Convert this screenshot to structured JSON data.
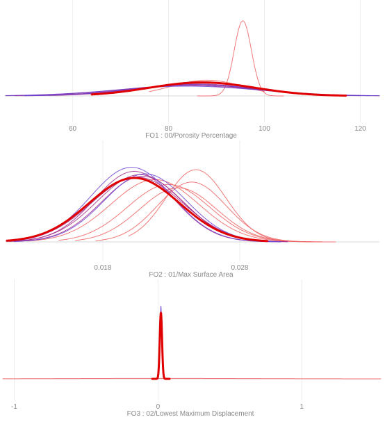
{
  "chart_data": [
    {
      "type": "line",
      "subtype": "density",
      "xlabel": "FO1 : 00/Porosity Percentage",
      "xticks": [
        60,
        80,
        100,
        120
      ],
      "xlim": [
        46,
        124
      ],
      "grid": true,
      "colors": {
        "light": "#ee6060",
        "mid": "#a02a8a",
        "dark": "#6a3fd4",
        "primary": "#e10000"
      },
      "curves": [
        {
          "mean": 95.5,
          "sd": 1.8,
          "height": 1.0,
          "range": [
            86,
            104
          ],
          "color": "light",
          "weight": 1
        },
        {
          "mean": 88,
          "sd": 7.5,
          "height": 0.21,
          "range": [
            76,
            100
          ],
          "color": "light",
          "weight": 1
        },
        {
          "mean": 87,
          "sd": 10,
          "height": 0.19,
          "range": [
            68,
            110
          ],
          "color": "light",
          "weight": 1
        },
        {
          "mean": 86,
          "sd": 12,
          "height": 0.16,
          "range": [
            55,
            118
          ],
          "color": "mid",
          "weight": 1
        },
        {
          "mean": 85,
          "sd": 13,
          "height": 0.15,
          "range": [
            48,
            120
          ],
          "color": "mid",
          "weight": 1
        },
        {
          "mean": 84,
          "sd": 14,
          "height": 0.14,
          "range": [
            46,
            124
          ],
          "color": "mid",
          "weight": 1
        },
        {
          "mean": 85.5,
          "sd": 12.5,
          "height": 0.15,
          "range": [
            50,
            120
          ],
          "color": "mid",
          "weight": 1
        },
        {
          "mean": 84,
          "sd": 15,
          "height": 0.13,
          "range": [
            46,
            124
          ],
          "color": "dark",
          "weight": 1
        },
        {
          "mean": 86,
          "sd": 13,
          "height": 0.15,
          "range": [
            50,
            122
          ],
          "color": "dark",
          "weight": 1
        },
        {
          "mean": 87,
          "sd": 11,
          "height": 0.18,
          "range": [
            64,
            117
          ],
          "color": "primary",
          "weight": 3
        }
      ]
    },
    {
      "type": "line",
      "subtype": "density",
      "xlabel": "FO2 : 01/Max Surface Area",
      "xticks": [
        "0.018",
        "0.028"
      ],
      "xlim": [
        0.0109,
        0.0382
      ],
      "grid": true,
      "colors": {
        "light": "#ee6060",
        "mid": "#a02a8a",
        "dark": "#6a3fd4",
        "primary": "#e10000"
      },
      "curves": [
        {
          "mean": 0.0248,
          "sd": 0.0022,
          "height": 0.88,
          "range": [
            0.0199,
            0.034
          ],
          "color": "light",
          "weight": 1
        },
        {
          "mean": 0.0245,
          "sd": 0.0025,
          "height": 0.73,
          "range": [
            0.0175,
            0.035
          ],
          "color": "light",
          "weight": 1
        },
        {
          "mean": 0.0235,
          "sd": 0.0028,
          "height": 0.66,
          "range": [
            0.016,
            0.034
          ],
          "color": "light",
          "weight": 1
        },
        {
          "mean": 0.0228,
          "sd": 0.003,
          "height": 0.7,
          "range": [
            0.0148,
            0.0335
          ],
          "color": "light",
          "weight": 1
        },
        {
          "mean": 0.0218,
          "sd": 0.0032,
          "height": 0.76,
          "range": [
            0.0125,
            0.0325
          ],
          "color": "light",
          "weight": 1
        },
        {
          "mean": 0.0205,
          "sd": 0.0033,
          "height": 0.79,
          "range": [
            0.011,
            0.0315
          ],
          "color": "mid",
          "weight": 1
        },
        {
          "mean": 0.0207,
          "sd": 0.0031,
          "height": 0.82,
          "range": [
            0.011,
            0.0315
          ],
          "color": "mid",
          "weight": 1
        },
        {
          "mean": 0.0209,
          "sd": 0.003,
          "height": 0.8,
          "range": [
            0.0115,
            0.031
          ],
          "color": "mid",
          "weight": 1
        },
        {
          "mean": 0.0203,
          "sd": 0.0029,
          "height": 0.86,
          "range": [
            0.0112,
            0.031
          ],
          "color": "mid",
          "weight": 1
        },
        {
          "mean": 0.0201,
          "sd": 0.003,
          "height": 0.91,
          "range": [
            0.011,
            0.031
          ],
          "color": "dark",
          "weight": 1
        },
        {
          "mean": 0.0211,
          "sd": 0.003,
          "height": 0.83,
          "range": [
            0.0115,
            0.031
          ],
          "color": "dark",
          "weight": 1
        },
        {
          "mean": 0.0203,
          "sd": 0.0033,
          "height": 0.78,
          "range": [
            0.011,
            0.03
          ],
          "color": "primary",
          "weight": 3
        }
      ]
    },
    {
      "type": "line",
      "subtype": "density",
      "xlabel": "FO3 : 02/Lowest Maximum Displacement",
      "xticks": [
        "-1",
        "0",
        "1"
      ],
      "xlim": [
        -1.08,
        1.55
      ],
      "grid": true,
      "colors": {
        "light": "#ee6060",
        "mid": "#a02a8a",
        "dark": "#6a3fd4",
        "primary": "#e10000"
      },
      "curves": [
        {
          "mean": 0.0,
          "sd": 0.6,
          "height": 0.006,
          "range": [
            -1.08,
            1.55
          ],
          "color": "light",
          "weight": 1
        },
        {
          "mean": 0.02,
          "sd": 0.006,
          "height": 0.97,
          "range": [
            -0.04,
            0.08
          ],
          "color": "dark",
          "weight": 1
        },
        {
          "mean": 0.02,
          "sd": 0.008,
          "height": 0.88,
          "range": [
            -0.04,
            0.08
          ],
          "color": "primary",
          "weight": 3
        }
      ]
    }
  ]
}
